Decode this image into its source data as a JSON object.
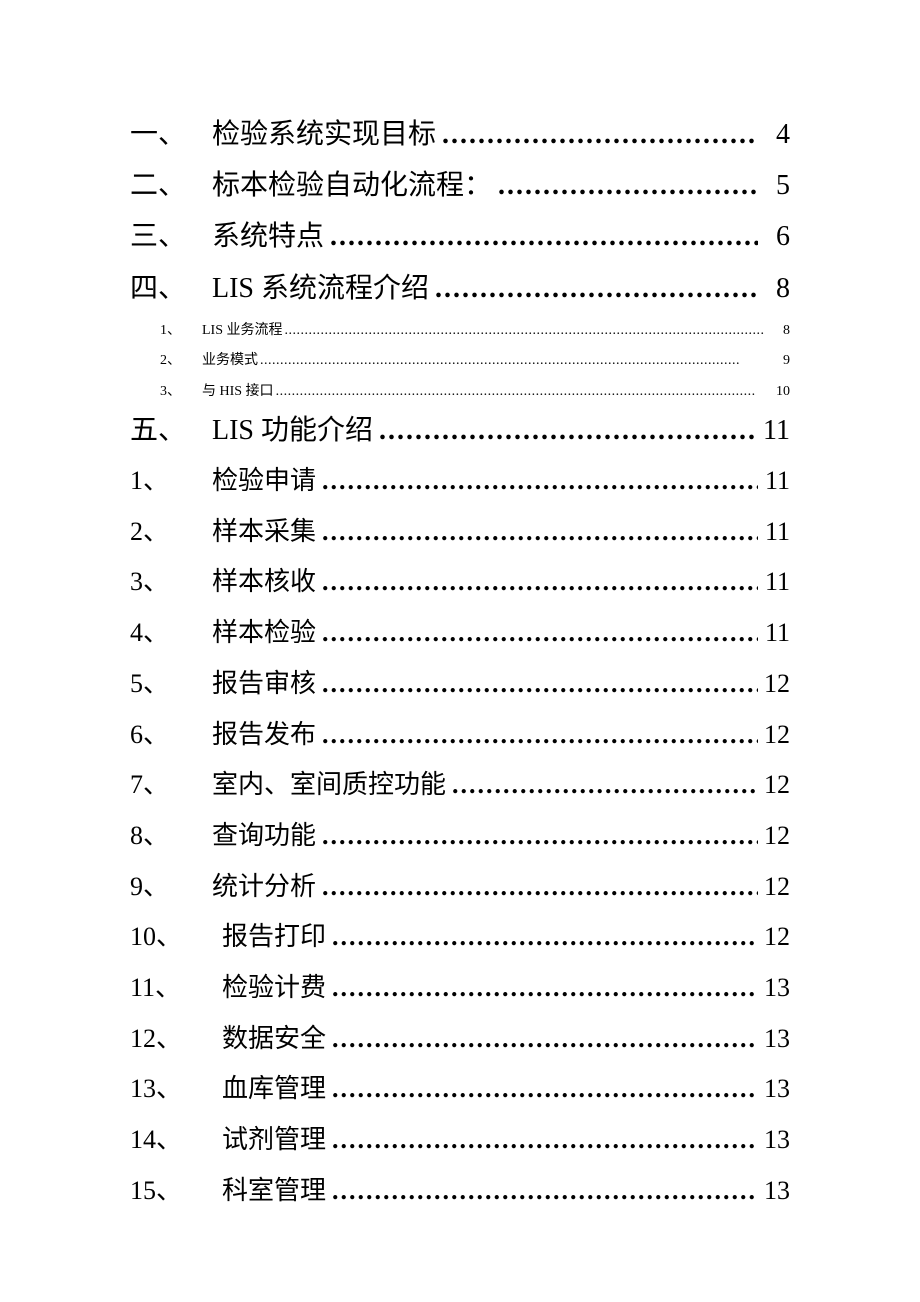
{
  "toc": {
    "text_color": "#000000",
    "background_color": "#ffffff",
    "level1_fontsize": 28,
    "level2_fontsize": 26,
    "level3_fontsize": 14,
    "leader_char": ".",
    "entries": [
      {
        "level": 1,
        "marker": "一、",
        "title": "检验系统实现目标",
        "page": "4"
      },
      {
        "level": 1,
        "marker": "二、",
        "title": "标本检验自动化流程：",
        "page": "5"
      },
      {
        "level": 1,
        "marker": "三、",
        "title": "系统特点",
        "page": "6"
      },
      {
        "level": 1,
        "marker": "四、",
        "title": "LIS 系统流程介绍",
        "page": "8"
      },
      {
        "level": 3,
        "marker": "1、",
        "title": "LIS 业务流程",
        "page": "8"
      },
      {
        "level": 3,
        "marker": "2、",
        "title": "业务模式",
        "page": "9"
      },
      {
        "level": 3,
        "marker": "3、",
        "title": "与 HIS 接口",
        "page": "10"
      },
      {
        "level": 1,
        "marker": "五、",
        "title": "LIS 功能介绍",
        "page": "11"
      },
      {
        "level": 2,
        "marker": "1、",
        "title": "检验申请",
        "page": "11"
      },
      {
        "level": 2,
        "marker": "2、",
        "title": "样本采集",
        "page": "11"
      },
      {
        "level": 2,
        "marker": "3、",
        "title": "样本核收",
        "page": "11"
      },
      {
        "level": 2,
        "marker": "4、",
        "title": "样本检验",
        "page": "11"
      },
      {
        "level": 2,
        "marker": "5、",
        "title": "报告审核",
        "page": "12"
      },
      {
        "level": 2,
        "marker": "6、",
        "title": "报告发布",
        "page": "12"
      },
      {
        "level": 2,
        "marker": "7、",
        "title": "室内、室间质控功能",
        "page": "12"
      },
      {
        "level": 2,
        "marker": "8、",
        "title": "查询功能",
        "page": "12"
      },
      {
        "level": 2,
        "marker": "9、",
        "title": "统计分析",
        "page": "12"
      },
      {
        "level": 2,
        "marker": "10、",
        "title": "报告打印",
        "page": "12",
        "wide": true
      },
      {
        "level": 2,
        "marker": "11、",
        "title": "检验计费",
        "page": "13",
        "wide": true
      },
      {
        "level": 2,
        "marker": "12、",
        "title": "数据安全",
        "page": "13",
        "wide": true
      },
      {
        "level": 2,
        "marker": "13、",
        "title": "血库管理",
        "page": "13",
        "wide": true
      },
      {
        "level": 2,
        "marker": "14、",
        "title": "试剂管理",
        "page": "13",
        "wide": true
      },
      {
        "level": 2,
        "marker": "15、",
        "title": "科室管理",
        "page": "13",
        "wide": true
      }
    ]
  }
}
